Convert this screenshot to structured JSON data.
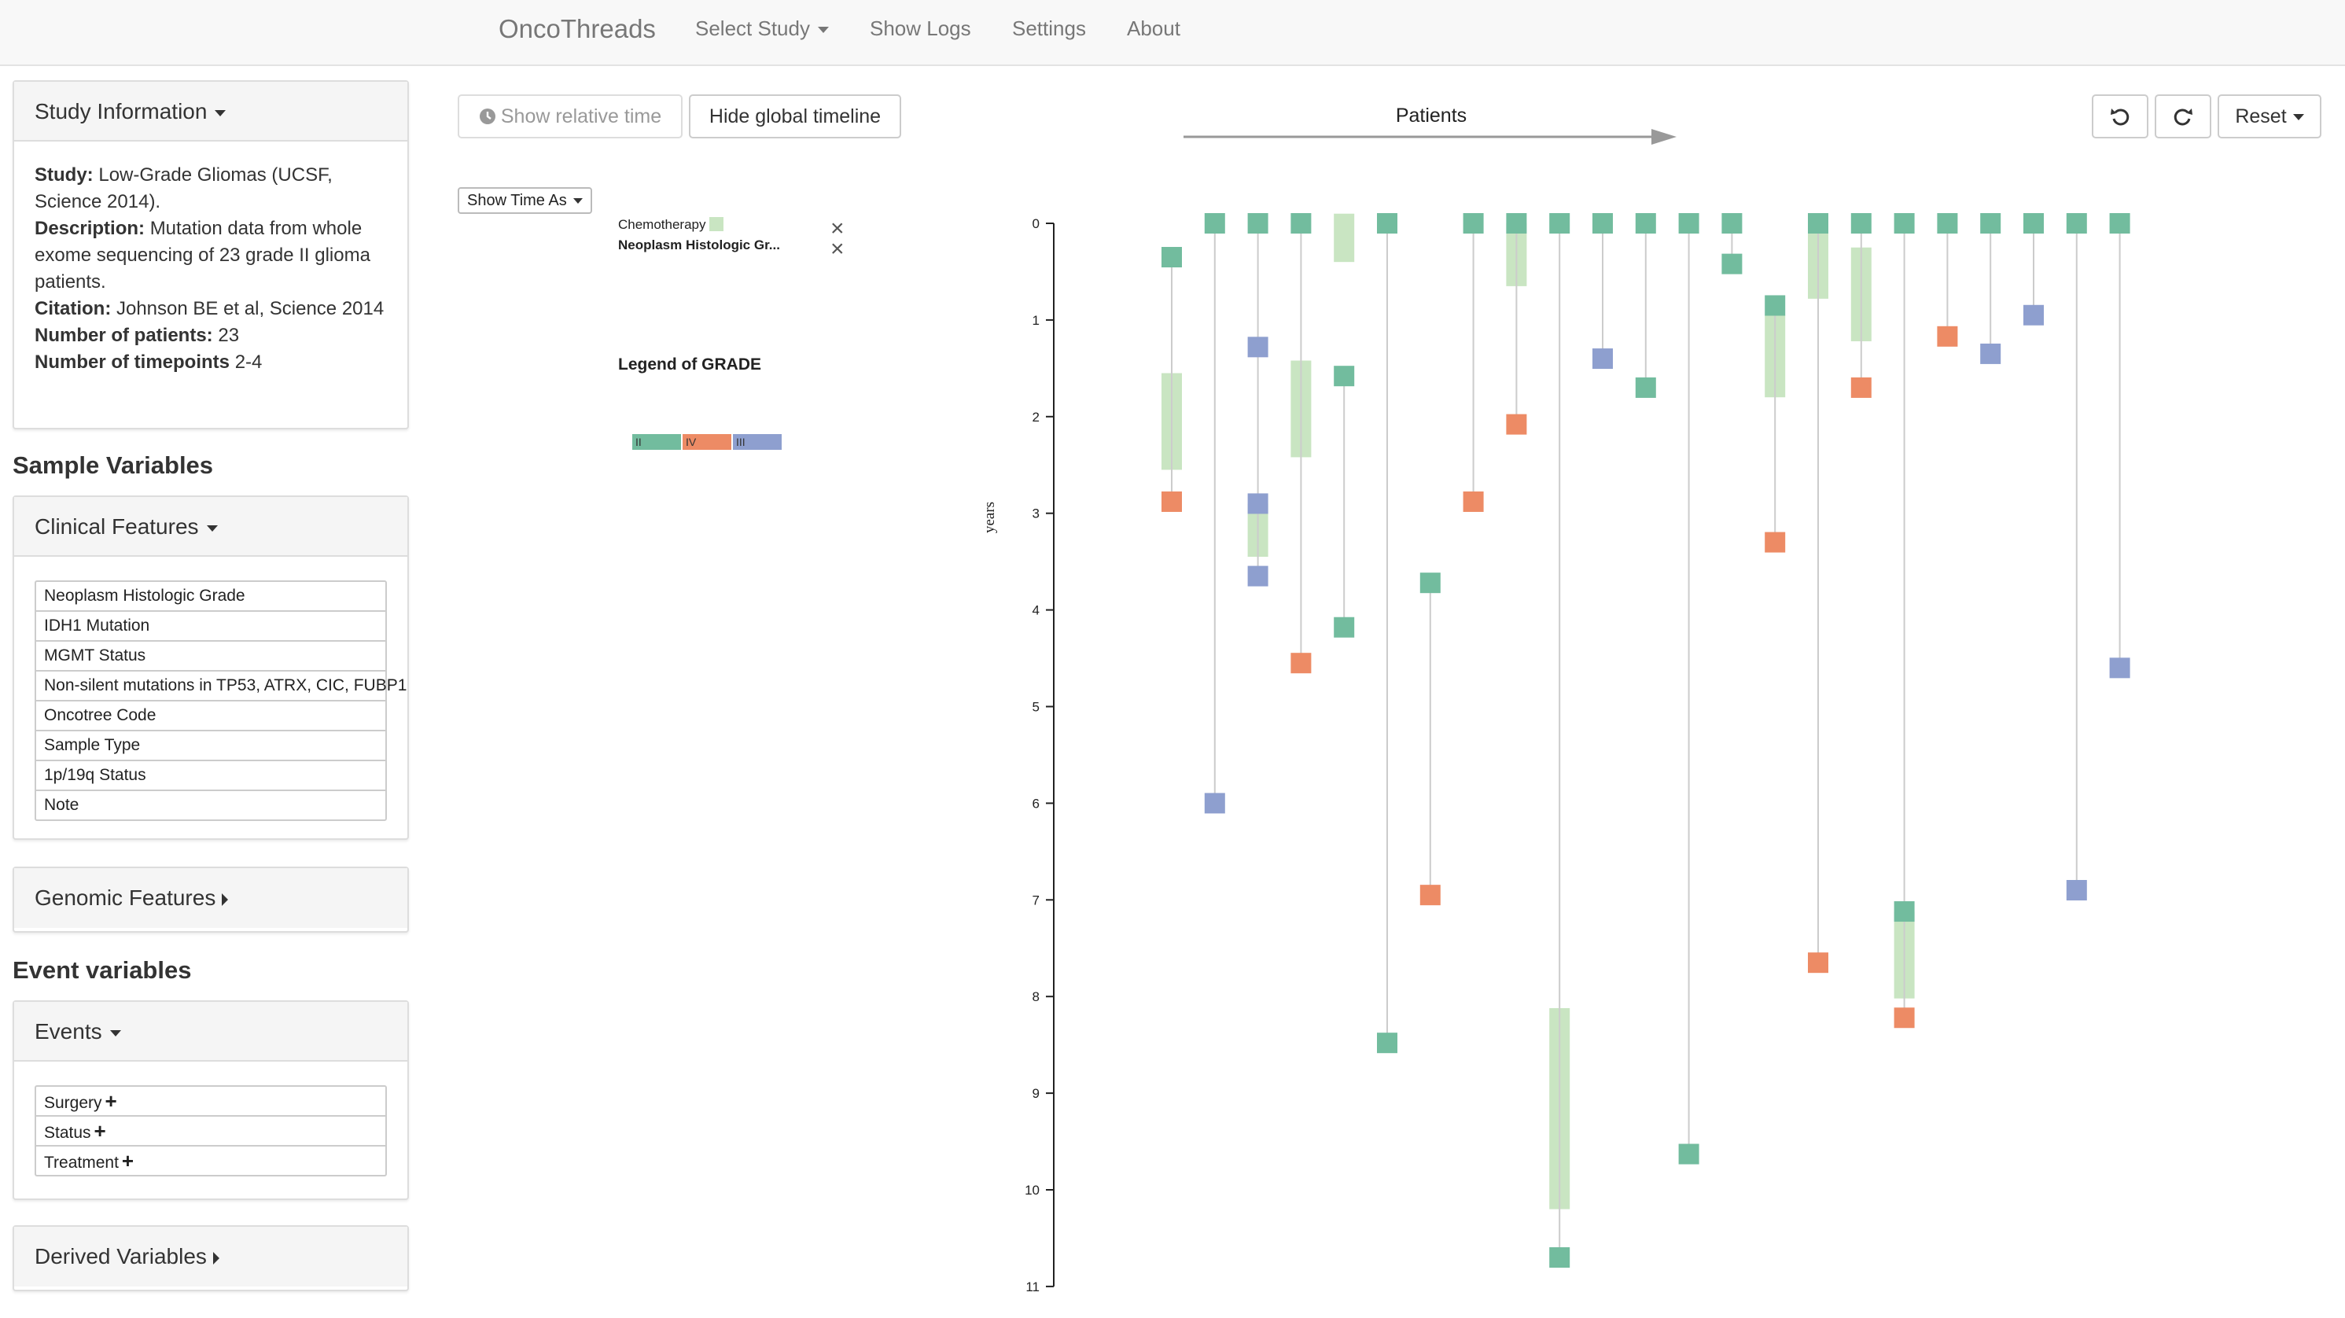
{
  "navbar": {
    "brand": "OncoThreads",
    "items": [
      "Select Study",
      "Show Logs",
      "Settings",
      "About"
    ]
  },
  "study_info": {
    "heading": "Study Information",
    "study_label": "Study:",
    "study_value": "Low-Grade Gliomas (UCSF, Science 2014).",
    "description_label": "Description:",
    "description_value": "Mutation data from whole exome sequencing of 23 grade II glioma patients.",
    "citation_label": "Citation:",
    "citation_value": "Johnson BE et al, Science 2014",
    "patients_label": "Number of patients:",
    "patients_value": "23",
    "timepoints_label": "Number of timepoints",
    "timepoints_value": "2-4"
  },
  "sample_variables": {
    "title": "Sample Variables",
    "clinical_heading": "Clinical Features",
    "clinical_items": [
      "Neoplasm Histologic Grade",
      "IDH1 Mutation",
      "MGMT Status",
      "Non-silent mutations in TP53, ATRX, CIC, FUBP1",
      "Oncotree Code",
      "Sample Type",
      "1p/19q Status",
      "Note"
    ],
    "genomic_heading": "Genomic Features"
  },
  "event_variables": {
    "title": "Event variables",
    "events_heading": "Events",
    "event_items": [
      "Surgery",
      "Status",
      "Treatment"
    ],
    "derived_heading": "Derived Variables"
  },
  "toolbar": {
    "relative_time": "Show relative time",
    "global_timeline": "Hide global timeline",
    "reset": "Reset",
    "show_time_as": "Show Time As"
  },
  "legend": {
    "chemotherapy": "Chemotherapy",
    "grade_row": "Neoplasm Histologic Gr...",
    "grade_title": "Legend of GRADE",
    "grade_items": [
      {
        "label": "II",
        "color": "#72bc9e"
      },
      {
        "label": "IV",
        "color": "#ed8b65"
      },
      {
        "label": "III",
        "color": "#8e9fcf"
      }
    ]
  },
  "colors": {
    "grade_II": "#72bc9e",
    "grade_IV": "#ed8b65",
    "grade_III": "#8e9fcf",
    "chemotherapy": "#c9e5c2",
    "patient_line": "#cccccc"
  },
  "chart_data": {
    "type": "timeline",
    "x_label": "Patients",
    "y_label": "years",
    "y_range": [
      0,
      11
    ],
    "y_ticks": [
      "0",
      "1",
      "2",
      "3",
      "4",
      "5",
      "6",
      "7",
      "8",
      "9",
      "10",
      "11"
    ],
    "grade_colors": {
      "II": "#72bc9e",
      "IV": "#ed8b65",
      "III": "#8e9fcf"
    },
    "patients": [
      {
        "samples": [
          {
            "t": 0.35,
            "grade": "II"
          },
          {
            "t": 2.88,
            "grade": "IV"
          }
        ],
        "chemo": [
          [
            1.55,
            2.55
          ]
        ]
      },
      {
        "samples": [
          {
            "t": 0.0,
            "grade": "II"
          },
          {
            "t": 6.0,
            "grade": "III"
          }
        ],
        "chemo": []
      },
      {
        "samples": [
          {
            "t": 0.0,
            "grade": "II"
          },
          {
            "t": 1.28,
            "grade": "III"
          },
          {
            "t": 2.9,
            "grade": "III"
          },
          {
            "t": 3.65,
            "grade": "III"
          }
        ],
        "chemo": [
          [
            2.9,
            3.45
          ]
        ]
      },
      {
        "samples": [
          {
            "t": 0.0,
            "grade": "II"
          },
          {
            "t": 4.55,
            "grade": "IV"
          }
        ],
        "chemo": [
          [
            1.42,
            2.42
          ]
        ]
      },
      {
        "samples": [
          {
            "t": 1.58,
            "grade": "II"
          },
          {
            "t": 4.18,
            "grade": "II"
          }
        ],
        "chemo": [
          [
            -0.1,
            0.4
          ]
        ]
      },
      {
        "samples": [
          {
            "t": 0.0,
            "grade": "II"
          },
          {
            "t": 8.48,
            "grade": "II"
          }
        ],
        "chemo": []
      },
      {
        "samples": [
          {
            "t": 3.72,
            "grade": "II"
          },
          {
            "t": 6.95,
            "grade": "IV"
          }
        ],
        "chemo": []
      },
      {
        "samples": [
          {
            "t": 0.0,
            "grade": "II"
          },
          {
            "t": 2.88,
            "grade": "IV"
          }
        ],
        "chemo": []
      },
      {
        "samples": [
          {
            "t": 0.0,
            "grade": "II"
          },
          {
            "t": 2.08,
            "grade": "IV"
          }
        ],
        "chemo": [
          [
            0.0,
            0.65
          ]
        ]
      },
      {
        "samples": [
          {
            "t": 0.0,
            "grade": "II"
          },
          {
            "t": 10.7,
            "grade": "II"
          }
        ],
        "chemo": [
          [
            8.12,
            10.2
          ]
        ]
      },
      {
        "samples": [
          {
            "t": 0.0,
            "grade": "II"
          },
          {
            "t": 1.4,
            "grade": "III"
          }
        ],
        "chemo": []
      },
      {
        "samples": [
          {
            "t": 0.0,
            "grade": "II"
          },
          {
            "t": 1.7,
            "grade": "II"
          }
        ],
        "chemo": []
      },
      {
        "samples": [
          {
            "t": 0.0,
            "grade": "II"
          },
          {
            "t": 9.63,
            "grade": "II"
          }
        ],
        "chemo": []
      },
      {
        "samples": [
          {
            "t": 0.0,
            "grade": "II"
          },
          {
            "t": 0.42,
            "grade": "II"
          }
        ],
        "chemo": []
      },
      {
        "samples": [
          {
            "t": 0.85,
            "grade": "II"
          },
          {
            "t": 3.3,
            "grade": "IV"
          }
        ],
        "chemo": [
          [
            0.95,
            1.8
          ]
        ]
      },
      {
        "samples": [
          {
            "t": 0.0,
            "grade": "II"
          },
          {
            "t": 7.65,
            "grade": "IV"
          }
        ],
        "chemo": [
          [
            0.0,
            0.78
          ]
        ]
      },
      {
        "samples": [
          {
            "t": 0.0,
            "grade": "II"
          },
          {
            "t": 1.7,
            "grade": "IV"
          }
        ],
        "chemo": [
          [
            0.25,
            1.22
          ]
        ]
      },
      {
        "samples": [
          {
            "t": 0.0,
            "grade": "II"
          },
          {
            "t": 7.12,
            "grade": "II"
          },
          {
            "t": 8.22,
            "grade": "IV"
          }
        ],
        "chemo": [
          [
            7.12,
            8.02
          ]
        ]
      },
      {
        "samples": [
          {
            "t": 0.0,
            "grade": "II"
          },
          {
            "t": 1.17,
            "grade": "IV"
          }
        ],
        "chemo": []
      },
      {
        "samples": [
          {
            "t": 0.0,
            "grade": "II"
          },
          {
            "t": 1.35,
            "grade": "III"
          }
        ],
        "chemo": []
      },
      {
        "samples": [
          {
            "t": 0.0,
            "grade": "II"
          },
          {
            "t": 0.95,
            "grade": "III"
          }
        ],
        "chemo": []
      },
      {
        "samples": [
          {
            "t": 0.0,
            "grade": "II"
          },
          {
            "t": 6.9,
            "grade": "III"
          }
        ],
        "chemo": []
      },
      {
        "samples": [
          {
            "t": 0.0,
            "grade": "II"
          },
          {
            "t": 4.6,
            "grade": "III"
          }
        ],
        "chemo": []
      }
    ]
  }
}
